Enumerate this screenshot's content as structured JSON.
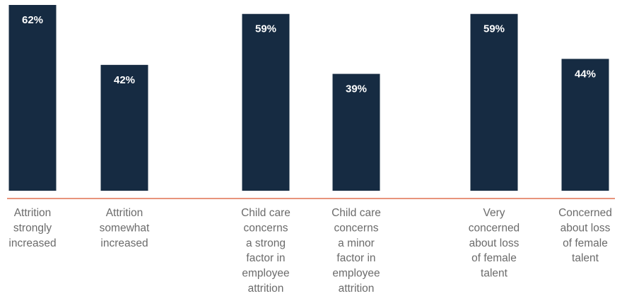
{
  "colors": {
    "bar": "#162b42",
    "baseline": "#e07050",
    "value_text": "#ffffff",
    "category_text": "#6b6b6b"
  },
  "chart_data": {
    "type": "bar",
    "categories": [
      [
        "Attrition",
        "strongly",
        "increased"
      ],
      [
        "Attrition",
        "somewhat",
        "increased"
      ],
      [
        "Child care",
        "concerns",
        "a strong",
        "factor in",
        "employee",
        "attrition"
      ],
      [
        "Child care",
        "concerns",
        "a minor",
        "factor in",
        "employee",
        "attrition"
      ],
      [
        "Very",
        "concerned",
        "about loss",
        "of female",
        "talent"
      ],
      [
        "Concerned",
        "about loss",
        "of female",
        "talent"
      ]
    ],
    "values": [
      62,
      42,
      59,
      39,
      59,
      44
    ],
    "value_labels": [
      "62%",
      "42%",
      "59%",
      "39%",
      "59%",
      "44%"
    ],
    "ylim": [
      0,
      62
    ],
    "grid": false,
    "legend": "none"
  }
}
